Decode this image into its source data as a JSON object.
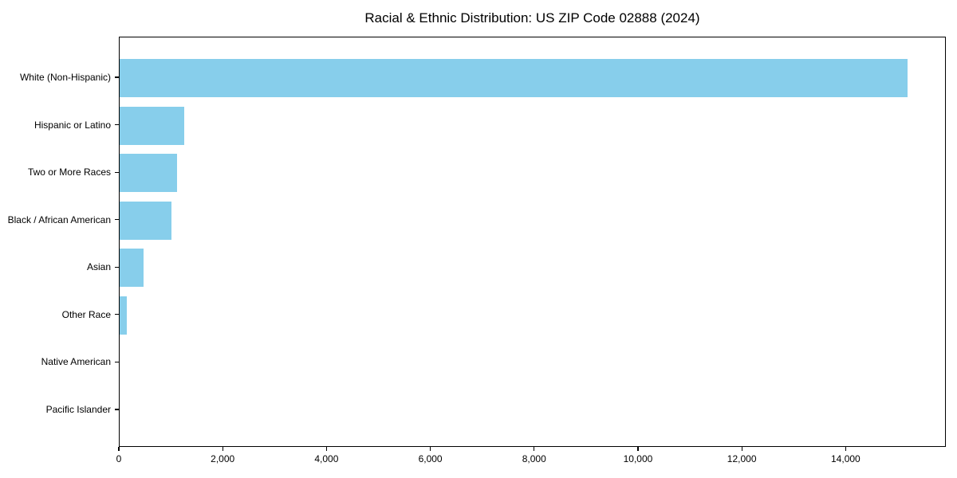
{
  "chart_data": {
    "type": "bar",
    "orientation": "horizontal",
    "title": "Racial & Ethnic Distribution: US ZIP Code 02888 (2024)",
    "categories": [
      "White (Non-Hispanic)",
      "Hispanic or Latino",
      "Two or More Races",
      "Black / African American",
      "Asian",
      "Other Race",
      "Native American",
      "Pacific Islander"
    ],
    "values": [
      15170,
      1250,
      1110,
      1000,
      460,
      145,
      0,
      0
    ],
    "xlabel": "",
    "ylabel": "",
    "xlim": [
      0,
      15930
    ],
    "xticks": [
      0,
      2000,
      4000,
      6000,
      8000,
      10000,
      12000,
      14000
    ],
    "xtick_labels": [
      "0",
      "2,000",
      "4,000",
      "6,000",
      "8,000",
      "10,000",
      "12,000",
      "14,000"
    ],
    "bar_color": "#87CEEB",
    "axis_color": "#000000",
    "grid": false,
    "legend": "none"
  }
}
